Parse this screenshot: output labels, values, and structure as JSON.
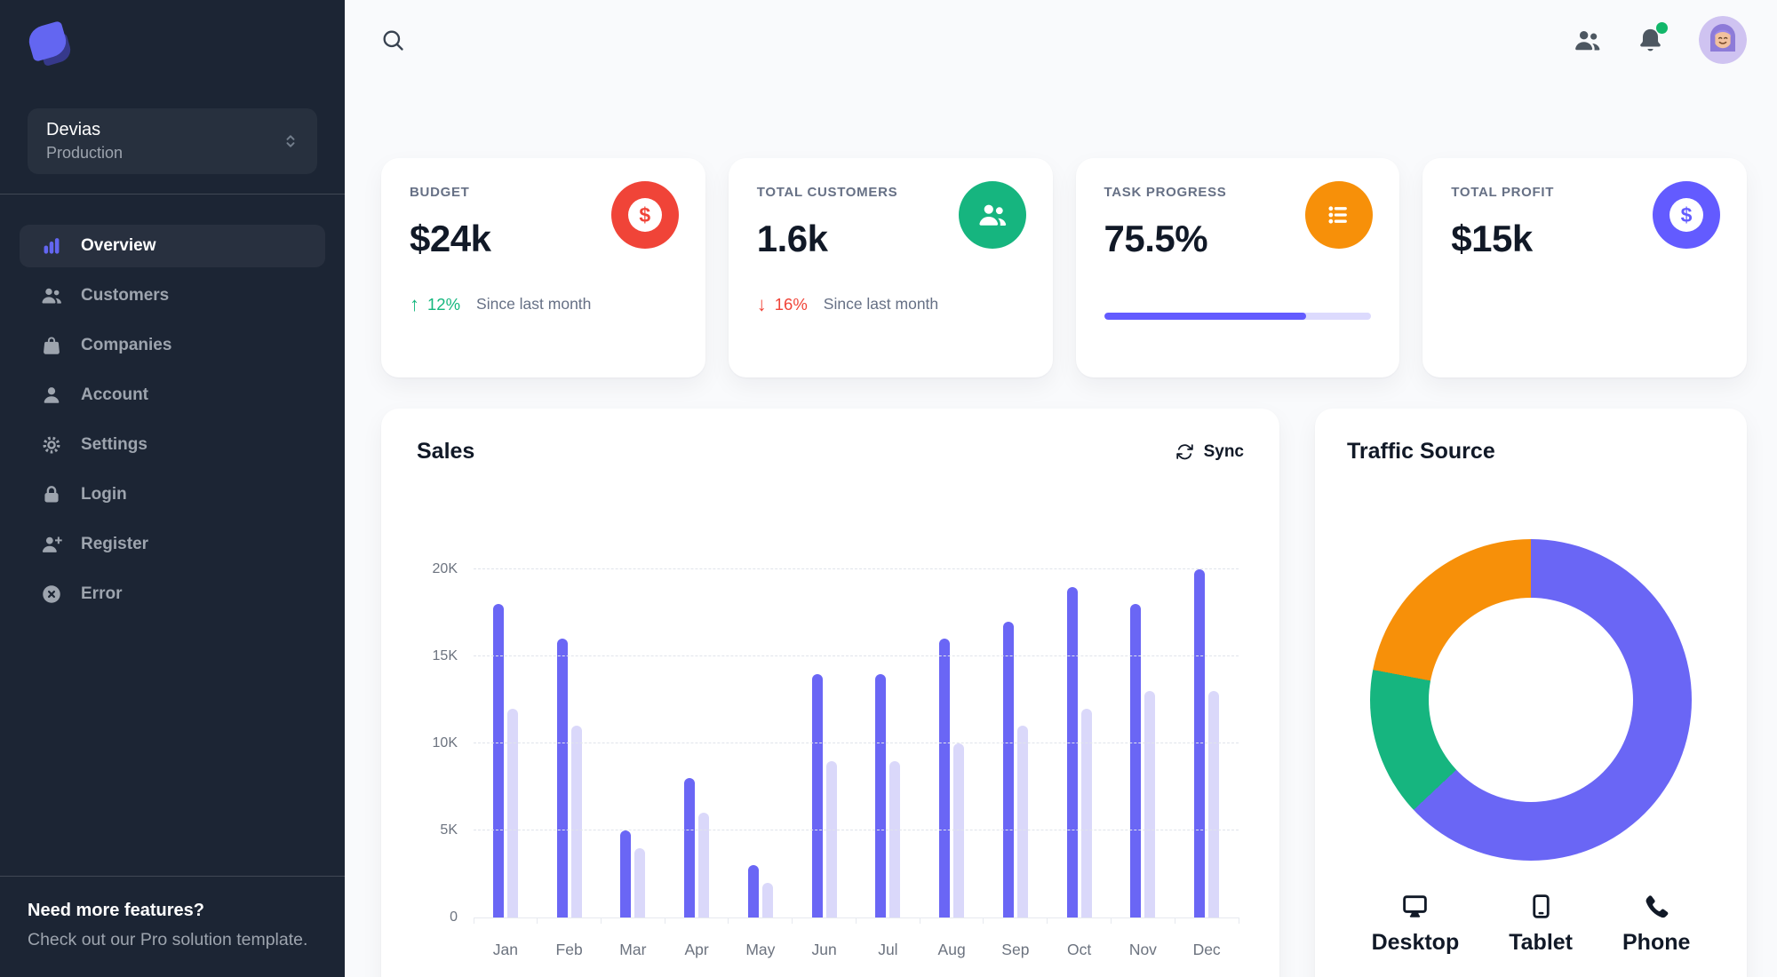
{
  "sidebar": {
    "logo_icon": "devias-logo",
    "workspace": {
      "name": "Devias",
      "environment": "Production",
      "unfold_icon": "unfold-icon"
    },
    "nav": [
      {
        "label": "Overview",
        "icon": "chart-bar-icon",
        "active": true
      },
      {
        "label": "Customers",
        "icon": "users-icon",
        "active": false
      },
      {
        "label": "Companies",
        "icon": "shopping-bag-icon",
        "active": false
      },
      {
        "label": "Account",
        "icon": "user-icon",
        "active": false
      },
      {
        "label": "Settings",
        "icon": "gear-icon",
        "active": false
      },
      {
        "label": "Login",
        "icon": "lock-icon",
        "active": false
      },
      {
        "label": "Register",
        "icon": "user-plus-icon",
        "active": false
      },
      {
        "label": "Error",
        "icon": "x-circle-icon",
        "active": false
      }
    ],
    "footer": {
      "title": "Need more features?",
      "subtitle": "Check out our Pro solution template."
    }
  },
  "header": {
    "search_icon": "search-icon",
    "users_icon": "users-icon",
    "bell_icon": "bell-icon",
    "notification_dot_color": "#12B76A",
    "avatar_icon": "avatar-memoji"
  },
  "stats": {
    "cards": [
      {
        "label": "BUDGET",
        "value": "$24k",
        "icon": "dollar-circle-icon",
        "icon_bg": "#F04438",
        "trend": {
          "direction": "up",
          "value": "12%",
          "color": "#15B77E"
        },
        "note": "Since last month"
      },
      {
        "label": "TOTAL CUSTOMERS",
        "value": "1.6k",
        "icon": "users-icon",
        "icon_bg": "#16B57F",
        "trend": {
          "direction": "down",
          "value": "16%",
          "color": "#F04438"
        },
        "note": "Since last month"
      },
      {
        "label": "TASK PROGRESS",
        "value": "75.5%",
        "icon": "list-bullet-icon",
        "icon_bg": "#F79009",
        "progress": {
          "percent": 75.5,
          "fill_color": "#635BFF",
          "track_color": "#DCDAFD"
        }
      },
      {
        "label": "TOTAL PROFIT",
        "value": "$15k",
        "icon": "dollar-circle-icon",
        "icon_bg": "#635BFF"
      }
    ]
  },
  "sales_panel": {
    "title": "Sales",
    "sync_label": "Sync",
    "sync_icon": "sync-icon"
  },
  "traffic_panel": {
    "title": "Traffic Source"
  },
  "chart_data": [
    {
      "type": "bar",
      "title": "Sales",
      "categories": [
        "Jan",
        "Feb",
        "Mar",
        "Apr",
        "May",
        "Jun",
        "Jul",
        "Aug",
        "Sep",
        "Oct",
        "Nov",
        "Dec"
      ],
      "series": [
        {
          "name": "series-1",
          "color": "#6A66F5",
          "values": [
            18,
            16,
            5,
            8,
            3,
            14,
            14,
            16,
            17,
            19,
            18,
            20
          ]
        },
        {
          "name": "series-2",
          "color": "#DAD8FA",
          "values": [
            12,
            11,
            4,
            6,
            2,
            9,
            9,
            10,
            11,
            12,
            13,
            13
          ]
        }
      ],
      "unit": "K",
      "ylim": [
        0,
        20
      ],
      "yticks": [
        {
          "label": "20K",
          "value": 20
        },
        {
          "label": "15K",
          "value": 15
        },
        {
          "label": "10K",
          "value": 10
        },
        {
          "label": "5K",
          "value": 5
        },
        {
          "label": "0",
          "value": 0
        }
      ],
      "grid": "dashed-horizontal",
      "legend": "none"
    },
    {
      "type": "pie",
      "donut": true,
      "title": "Traffic Source",
      "labels": [
        "Desktop",
        "Tablet",
        "Phone"
      ],
      "values": [
        63,
        15,
        22
      ],
      "colors": [
        "#6A66F5",
        "#16B57F",
        "#F79009"
      ],
      "legend_icons": [
        "monitor-icon",
        "tablet-icon",
        "phone-icon"
      ],
      "legend_position": "bottom"
    }
  ]
}
